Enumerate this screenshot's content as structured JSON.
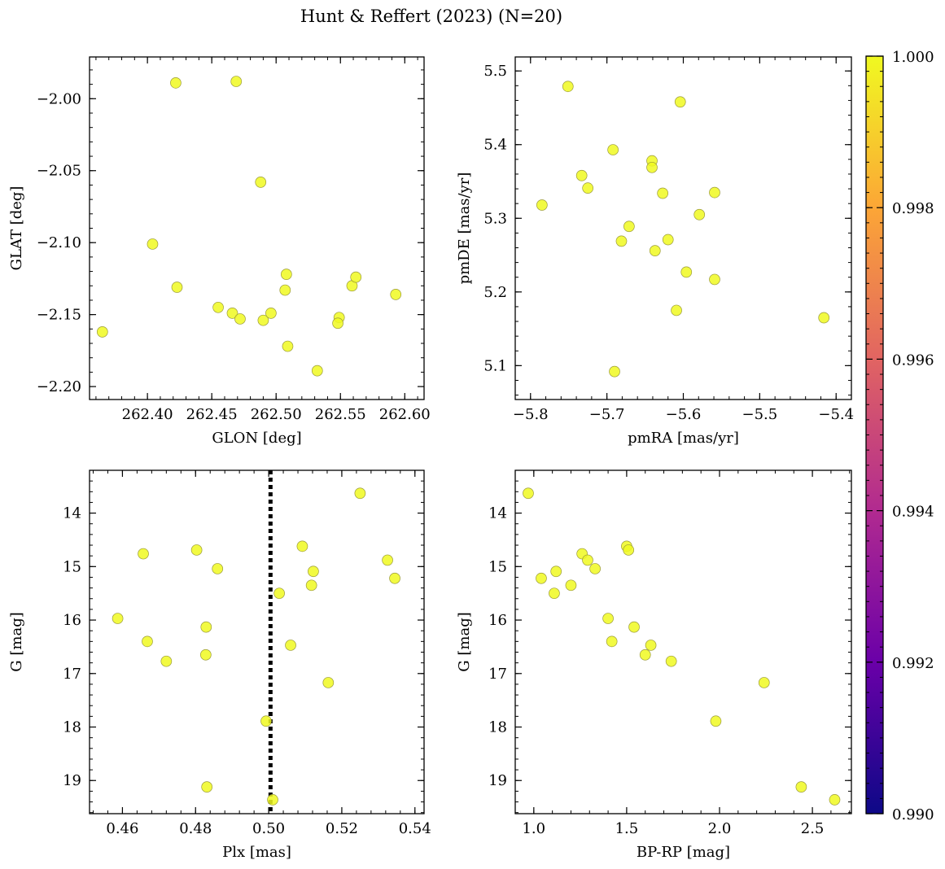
{
  "figure": {
    "title": "Hunt & Reffert (2023) (N=20)"
  },
  "colorbar": {
    "range": [
      0.99,
      1.0
    ],
    "ticks": [
      "0.990",
      "0.992",
      "0.994",
      "0.996",
      "0.998",
      "1.000"
    ],
    "colormap": "plasma",
    "stops": [
      "#0d0887",
      "#6a00a8",
      "#b12a90",
      "#e16462",
      "#fca636",
      "#f0f921"
    ]
  },
  "chart_data": [
    {
      "type": "scatter",
      "xlabel": "GLON [deg]",
      "ylabel": "GLAT [deg]",
      "xlim": [
        262.355,
        262.615
      ],
      "ylim": [
        -2.209,
        -1.971
      ],
      "xticks": [
        "262.35",
        "262.40",
        "262.45",
        "262.50",
        "262.55",
        "262.60"
      ],
      "yticks": [
        "-2.00",
        "-2.05",
        "-2.10",
        "-2.15",
        "-2.20"
      ],
      "marker_color": "#f0f921",
      "points": [
        [
          262.422,
          -1.989
        ],
        [
          262.469,
          -1.988
        ],
        [
          262.488,
          -2.058
        ],
        [
          262.404,
          -2.101
        ],
        [
          262.423,
          -2.131
        ],
        [
          262.365,
          -2.162
        ],
        [
          262.455,
          -2.145
        ],
        [
          262.466,
          -2.149
        ],
        [
          262.472,
          -2.153
        ],
        [
          262.49,
          -2.154
        ],
        [
          262.496,
          -2.149
        ],
        [
          262.508,
          -2.122
        ],
        [
          262.507,
          -2.133
        ],
        [
          262.509,
          -2.172
        ],
        [
          262.532,
          -2.189
        ],
        [
          262.549,
          -2.152
        ],
        [
          262.548,
          -2.156
        ],
        [
          262.559,
          -2.13
        ],
        [
          262.562,
          -2.124
        ],
        [
          262.593,
          -2.136
        ]
      ]
    },
    {
      "type": "scatter",
      "xlabel": "pmRA [mas/yr]",
      "ylabel": "pmDE [mas/yr]",
      "xlim": [
        -5.82,
        -5.38
      ],
      "ylim": [
        5.054,
        5.519
      ],
      "xticks": [
        "-5.8",
        "-5.7",
        "-5.6",
        "-5.5",
        "-5.4"
      ],
      "yticks": [
        "5.1",
        "5.2",
        "5.3",
        "5.4",
        "5.5"
      ],
      "marker_color": "#f0f921",
      "points": [
        [
          -5.751,
          5.479
        ],
        [
          -5.604,
          5.458
        ],
        [
          -5.692,
          5.393
        ],
        [
          -5.641,
          5.378
        ],
        [
          -5.641,
          5.369
        ],
        [
          -5.733,
          5.358
        ],
        [
          -5.725,
          5.341
        ],
        [
          -5.627,
          5.334
        ],
        [
          -5.559,
          5.335
        ],
        [
          -5.785,
          5.318
        ],
        [
          -5.579,
          5.305
        ],
        [
          -5.671,
          5.289
        ],
        [
          -5.681,
          5.269
        ],
        [
          -5.62,
          5.271
        ],
        [
          -5.637,
          5.256
        ],
        [
          -5.596,
          5.227
        ],
        [
          -5.559,
          5.217
        ],
        [
          -5.609,
          5.175
        ],
        [
          -5.416,
          5.165
        ],
        [
          -5.69,
          5.092
        ]
      ]
    },
    {
      "type": "scatter",
      "xlabel": "Plx [mas]",
      "ylabel": "G [mag]",
      "xlim": [
        0.451,
        0.5425
      ],
      "ylim": [
        19.62,
        13.2
      ],
      "y_inverted": true,
      "xticks": [
        "0.46",
        "0.48",
        "0.50",
        "0.52",
        "0.54"
      ],
      "yticks": [
        "14",
        "15",
        "16",
        "17",
        "18",
        "19"
      ],
      "marker_color": "#f0f921",
      "vline": {
        "x": 0.5005,
        "style": "dotted",
        "color": "#000000"
      },
      "points": [
        [
          0.525,
          13.63
        ],
        [
          0.5092,
          14.62
        ],
        [
          0.4803,
          14.69
        ],
        [
          0.4657,
          14.76
        ],
        [
          0.5325,
          14.88
        ],
        [
          0.486,
          15.04
        ],
        [
          0.5122,
          15.09
        ],
        [
          0.5345,
          15.22
        ],
        [
          0.5117,
          15.35
        ],
        [
          0.5029,
          15.5
        ],
        [
          0.4587,
          15.97
        ],
        [
          0.4829,
          16.13
        ],
        [
          0.4668,
          16.4
        ],
        [
          0.506,
          16.47
        ],
        [
          0.4828,
          16.65
        ],
        [
          0.472,
          16.77
        ],
        [
          0.5163,
          17.17
        ],
        [
          0.4993,
          17.89
        ],
        [
          0.4831,
          19.12
        ],
        [
          0.5011,
          19.36
        ]
      ]
    },
    {
      "type": "scatter",
      "xlabel": "BP-RP [mag]",
      "ylabel": "G [mag]",
      "xlim": [
        0.9,
        2.71
      ],
      "ylim": [
        19.62,
        13.2
      ],
      "y_inverted": true,
      "xticks": [
        "1.0",
        "1.5",
        "2.0",
        "2.5"
      ],
      "yticks": [
        "14",
        "15",
        "16",
        "17",
        "18",
        "19"
      ],
      "marker_color": "#f0f921",
      "points": [
        [
          0.97,
          13.63
        ],
        [
          1.5,
          14.62
        ],
        [
          1.51,
          14.69
        ],
        [
          1.26,
          14.76
        ],
        [
          1.29,
          14.88
        ],
        [
          1.33,
          15.04
        ],
        [
          1.12,
          15.09
        ],
        [
          1.04,
          15.22
        ],
        [
          1.2,
          15.35
        ],
        [
          1.11,
          15.5
        ],
        [
          1.4,
          15.97
        ],
        [
          1.54,
          16.13
        ],
        [
          1.42,
          16.4
        ],
        [
          1.63,
          16.47
        ],
        [
          1.6,
          16.65
        ],
        [
          1.74,
          16.77
        ],
        [
          2.24,
          17.17
        ],
        [
          1.98,
          17.89
        ],
        [
          2.44,
          19.12
        ],
        [
          2.62,
          19.36
        ]
      ]
    }
  ]
}
